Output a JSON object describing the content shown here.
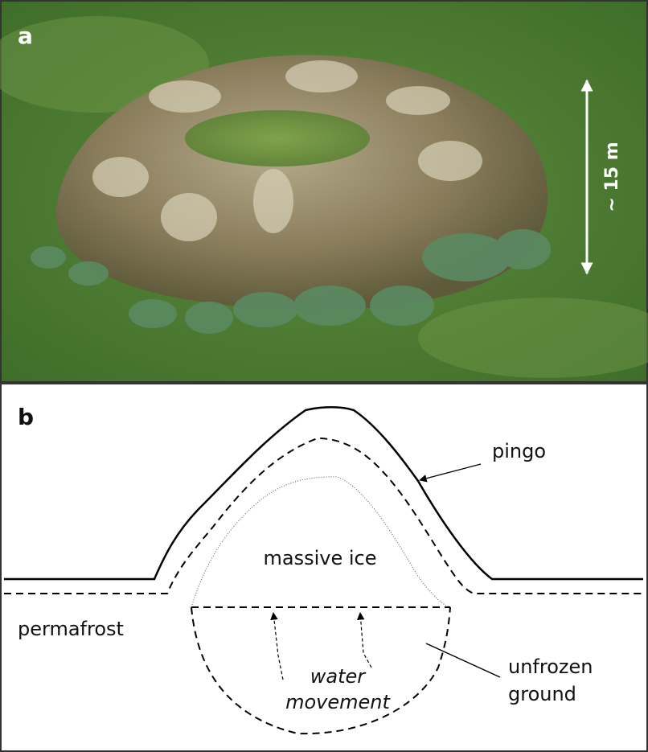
{
  "panel_a": {
    "label": "a",
    "scale_label": "~ 15 m"
  },
  "panel_b": {
    "label": "b",
    "labels": {
      "pingo": "pingo",
      "ice": "massive ice",
      "permafrost": "permafrost",
      "water": [
        "water",
        "movement"
      ],
      "unfrozen": [
        "unfrozen",
        "ground"
      ]
    }
  }
}
